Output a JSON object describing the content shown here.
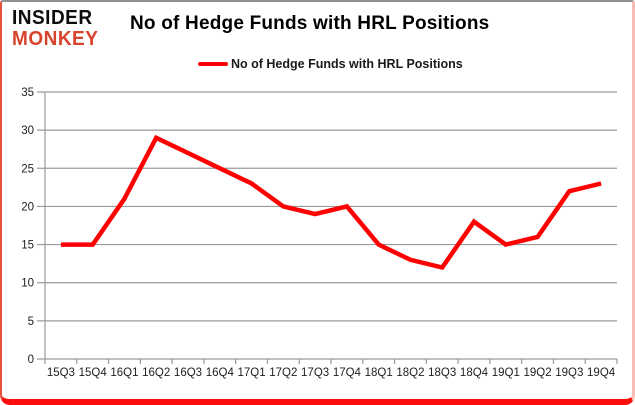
{
  "header": {
    "logo_line1": "INSIDER",
    "logo_line2": "MONKEY",
    "title": "No of Hedge Funds with HRL Positions"
  },
  "legend": {
    "label": "No of Hedge Funds with HRL Positions"
  },
  "colors": {
    "line": "#ff0000",
    "grid": "#9a9a9a",
    "axis": "#9a9a9a",
    "logo_black": "#0d0d0d",
    "logo_red": "#d8432b",
    "frame_bottom": "#fb0f0c",
    "tick_label": "#1f1f1f"
  },
  "chart_data": {
    "type": "line",
    "title": "No of Hedge Funds with HRL Positions",
    "categories": [
      "15Q3",
      "15Q4",
      "16Q1",
      "16Q2",
      "16Q3",
      "16Q4",
      "17Q1",
      "17Q2",
      "17Q3",
      "17Q4",
      "18Q1",
      "18Q2",
      "18Q3",
      "18Q4",
      "19Q1",
      "19Q2",
      "19Q3",
      "19Q4"
    ],
    "series": [
      {
        "name": "No of Hedge Funds with HRL Positions",
        "values": [
          15,
          15,
          21,
          29,
          27,
          25,
          23,
          20,
          19,
          20,
          15,
          13,
          12,
          18,
          15,
          16,
          22,
          23
        ]
      }
    ],
    "xlabel": "",
    "ylabel": "",
    "ylim": [
      0,
      35
    ],
    "ytick_step": 5,
    "grid": "horizontal",
    "legend_position": "top"
  }
}
